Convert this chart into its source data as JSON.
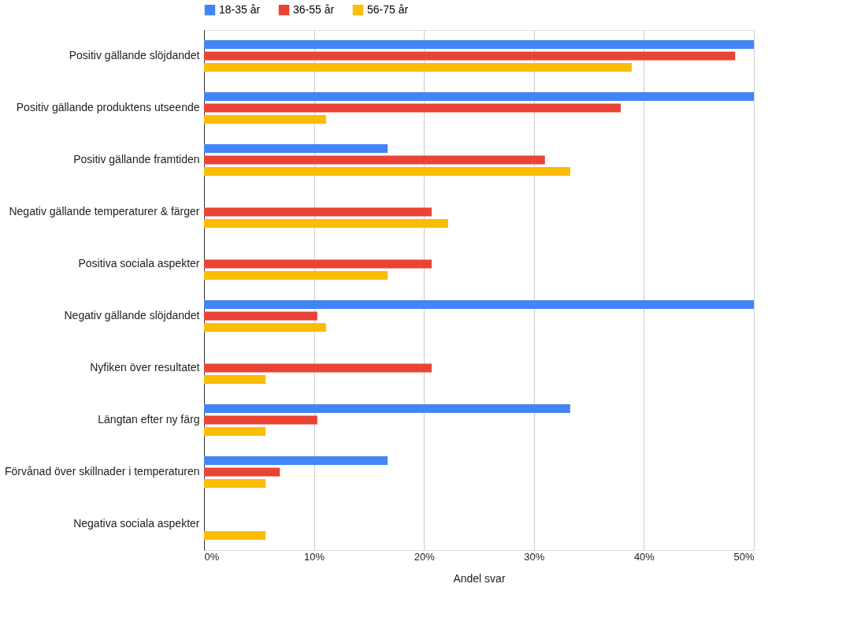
{
  "chart_data": {
    "type": "bar",
    "orientation": "horizontal",
    "xlabel": "Andel svar",
    "legend": "top",
    "grid": "x",
    "categories": [
      "Positiv gällande slöjdandet",
      "Positiv gällande produktens utseende",
      "Positiv gällande framtiden",
      "Negativ gällande temperaturer & färger",
      "Positiva sociala aspekter",
      "Negativ gällande slöjdandet",
      "Nyfiken över resultatet",
      "Längtan efter ny färg",
      "Förvånad över skillnader i temperaturen",
      "Negativa sociala aspekter"
    ],
    "series": [
      {
        "name": "18-35 år",
        "color": "#4285f4",
        "values": [
          50,
          50,
          16.7,
          0,
          0,
          50,
          0,
          33.3,
          16.7,
          0
        ]
      },
      {
        "name": "36-55 år",
        "color": "#ea4335",
        "values": [
          48.3,
          37.9,
          31.0,
          20.7,
          20.7,
          10.3,
          20.7,
          10.3,
          6.9,
          0
        ]
      },
      {
        "name": "56-75 år",
        "color": "#fbbc04",
        "values": [
          38.9,
          11.1,
          33.3,
          22.2,
          16.7,
          11.1,
          5.6,
          5.6,
          5.6,
          5.6
        ]
      }
    ],
    "xlim": [
      0,
      50
    ],
    "xticks": [
      {
        "value": 0,
        "label": "0%"
      },
      {
        "value": 10,
        "label": "10%"
      },
      {
        "value": 20,
        "label": "20%"
      },
      {
        "value": 30,
        "label": "30%"
      },
      {
        "value": 40,
        "label": "40%"
      },
      {
        "value": 50,
        "label": "50%"
      }
    ]
  }
}
